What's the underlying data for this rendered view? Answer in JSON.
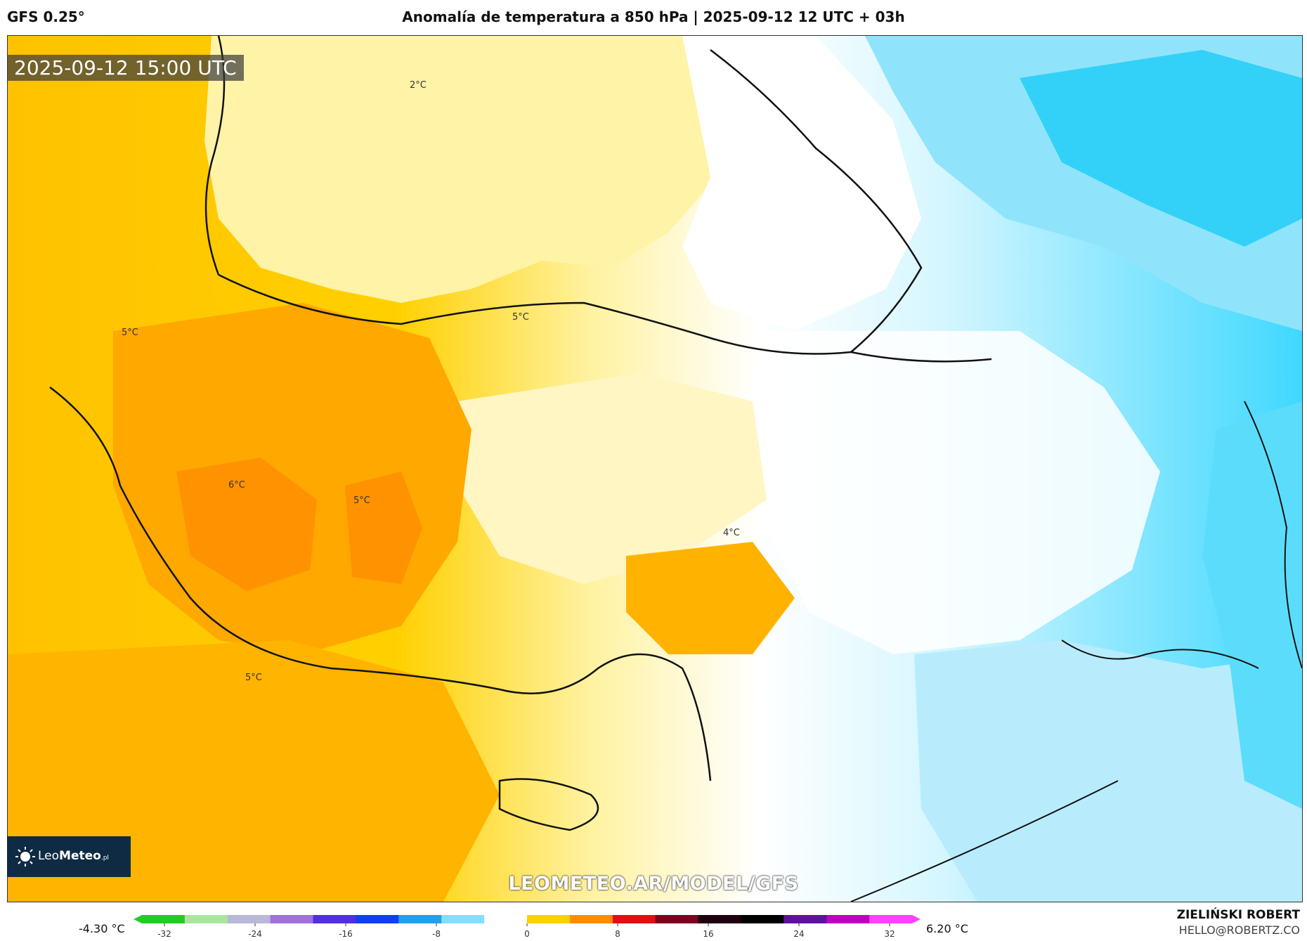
{
  "header": {
    "model": "GFS 0.25°",
    "title": "Anomalía de temperatura a 850 hPa | 2025-09-12 12 UTC + 03h"
  },
  "valid_time": "2025-09-12 15:00 UTC",
  "map": {
    "labels": [
      {
        "text": "2°C"
      },
      {
        "text": "5°C"
      },
      {
        "text": "5°C"
      },
      {
        "text": "6°C"
      },
      {
        "text": "5°C"
      },
      {
        "text": "4°C"
      },
      {
        "text": "5°C"
      }
    ]
  },
  "logo": {
    "part1": "Leo",
    "part2": "Meteo",
    "suffix": ".pl"
  },
  "watermark": "LEOMETEO.AR/MODEL/GFS",
  "legend": {
    "min_label": "-4.30 °C",
    "max_label": "6.20 °C",
    "ticks": [
      "-32",
      "-24",
      "-16",
      "-8",
      "0",
      "8",
      "16",
      "24",
      "32"
    ],
    "colors": [
      "#22cc22",
      "#a8e6a0",
      "#b8b8d8",
      "#a070e0",
      "#5030e0",
      "#1040f0",
      "#20a0f0",
      "#80e0ff",
      "#ffffff",
      "#ffd000",
      "#ff8c00",
      "#e01010",
      "#800020",
      "#200010",
      "#000000",
      "#6010a0",
      "#c000c0",
      "#ff40ff"
    ]
  },
  "credit": {
    "name": "ZIELIŃSKI ROBERT",
    "email": "HELLO@ROBERTZ.CO"
  }
}
